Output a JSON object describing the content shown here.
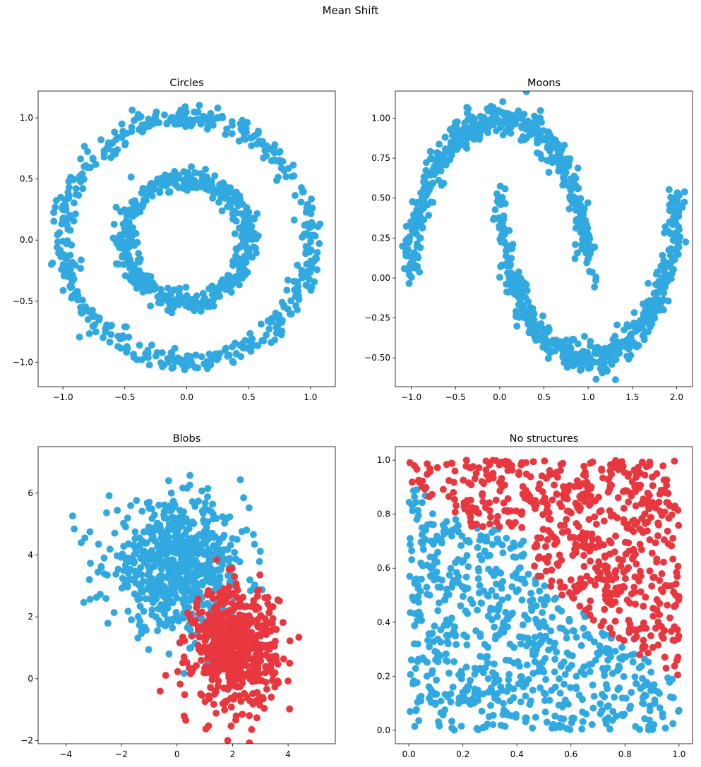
{
  "suptitle": "Mean Shift",
  "colors": {
    "blue": "#31a9e0",
    "red": "#e8373f"
  },
  "chart_data": [
    {
      "type": "scatter",
      "title": "Circles",
      "xlabel": "",
      "ylabel": "",
      "xlim": [
        -1.2,
        1.2
      ],
      "ylim": [
        -1.2,
        1.22
      ],
      "xticks": [
        -1.0,
        -0.5,
        0.0,
        0.5,
        1.0
      ],
      "xtick_labels": [
        "−1.0",
        "−0.5",
        "0.0",
        "0.5",
        "1.0"
      ],
      "yticks": [
        -1.0,
        -0.5,
        0.0,
        0.5,
        1.0
      ],
      "ytick_labels": [
        "−1.0",
        "−0.5",
        "0.0",
        "0.5",
        "1.0"
      ],
      "grid": false,
      "n_clusters": 1,
      "series": [
        {
          "shape": "ring",
          "cx": 0.0,
          "cy": 0.0,
          "r": 1.0,
          "noise": 0.045,
          "n": 500,
          "color": "#31a9e0"
        },
        {
          "shape": "ring",
          "cx": 0.0,
          "cy": 0.0,
          "r": 0.5,
          "noise": 0.045,
          "n": 500,
          "color": "#31a9e0"
        }
      ]
    },
    {
      "type": "scatter",
      "title": "Moons",
      "xlabel": "",
      "ylabel": "",
      "xlim": [
        -1.18,
        2.18
      ],
      "ylim": [
        -0.68,
        1.17
      ],
      "xticks": [
        -1.0,
        -0.5,
        0.0,
        0.5,
        1.0,
        1.5,
        2.0
      ],
      "xtick_labels": [
        "−1.0",
        "−0.5",
        "0.0",
        "0.5",
        "1.0",
        "1.5",
        "2.0"
      ],
      "yticks": [
        -0.5,
        -0.25,
        0.0,
        0.25,
        0.5,
        0.75,
        1.0
      ],
      "ytick_labels": [
        "−0.50",
        "−0.25",
        "0.00",
        "0.25",
        "0.50",
        "0.75",
        "1.00"
      ],
      "grid": false,
      "n_clusters": 1,
      "series": [
        {
          "shape": "upper-moon",
          "noise": 0.05,
          "n": 500,
          "color": "#31a9e0"
        },
        {
          "shape": "lower-moon",
          "noise": 0.05,
          "n": 500,
          "color": "#31a9e0"
        }
      ]
    },
    {
      "type": "scatter",
      "title": "Blobs",
      "xlabel": "",
      "ylabel": "",
      "xlim": [
        -5.0,
        5.7
      ],
      "ylim": [
        -2.1,
        7.5
      ],
      "xticks": [
        -4,
        -2,
        0,
        2,
        4
      ],
      "xtick_labels": [
        "−4",
        "−2",
        "0",
        "2",
        "4"
      ],
      "yticks": [
        -2,
        0,
        2,
        4,
        6
      ],
      "ytick_labels": [
        "−2",
        "0",
        "2",
        "4",
        "6"
      ],
      "grid": false,
      "n_clusters": 2,
      "series": [
        {
          "shape": "blob",
          "cx": 0.0,
          "cy": 3.6,
          "sx": 1.25,
          "sy": 1.0,
          "n": 700,
          "color": "#31a9e0"
        },
        {
          "shape": "blob",
          "cx": 2.1,
          "cy": 1.0,
          "sx": 0.75,
          "sy": 0.95,
          "n": 600,
          "color": "#e8373f"
        }
      ]
    },
    {
      "type": "scatter",
      "title": "No structures",
      "xlabel": "",
      "ylabel": "",
      "xlim": [
        -0.05,
        1.05
      ],
      "ylim": [
        -0.05,
        1.05
      ],
      "xticks": [
        0.0,
        0.2,
        0.4,
        0.6,
        0.8,
        1.0
      ],
      "xtick_labels": [
        "0.0",
        "0.2",
        "0.4",
        "0.6",
        "0.8",
        "1.0"
      ],
      "yticks": [
        0.0,
        0.2,
        0.4,
        0.6,
        0.8,
        1.0
      ],
      "ytick_labels": [
        "0.0",
        "0.2",
        "0.4",
        "0.6",
        "0.8",
        "1.0"
      ],
      "grid": false,
      "n_clusters": 2,
      "series": [
        {
          "shape": "uniform",
          "region": "lower-left",
          "n": 700,
          "color": "#31a9e0"
        },
        {
          "shape": "uniform",
          "region": "upper-right",
          "n": 600,
          "color": "#e8373f"
        }
      ]
    }
  ]
}
